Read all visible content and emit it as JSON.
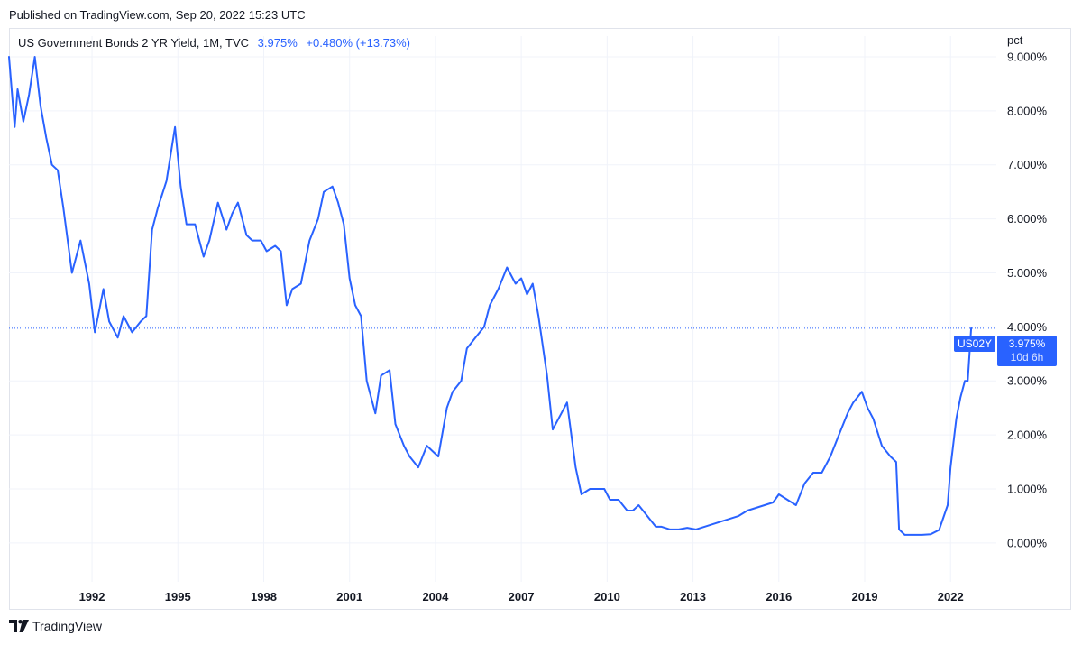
{
  "published": "Published on TradingView.com, Sep 20, 2022 15:23 UTC",
  "legend": {
    "name": "US Government Bonds 2 YR Yield, 1M, TVC",
    "last": "3.975%",
    "change": "+0.480% (+13.73%)"
  },
  "axis_unit": "pct",
  "price_tag": {
    "symbol": "US02Y",
    "value": "3.975%",
    "countdown": "10d 6h"
  },
  "footer": {
    "brand": "TradingView",
    "logo_icon": "tradingview-logo-icon"
  },
  "colors": {
    "line": "#2962ff",
    "grid": "#f0f3fa",
    "text": "#131722",
    "accent": "#2962ff"
  },
  "chart_data": {
    "type": "line",
    "title": "US Government Bonds 2 YR Yield, 1M, TVC",
    "ylabel": "pct",
    "ylim": [
      -0.72,
      9.3
    ],
    "xlim": [
      1989.1,
      2023.6
    ],
    "yticks": [
      0,
      1,
      2,
      3,
      4,
      5,
      6,
      7,
      8,
      9
    ],
    "ytick_labels": [
      "0.000%",
      "1.000%",
      "2.000%",
      "3.000%",
      "4.000%",
      "5.000%",
      "6.000%",
      "7.000%",
      "8.000%",
      "9.000%"
    ],
    "xticks": [
      1992,
      1995,
      1998,
      2001,
      2004,
      2007,
      2010,
      2013,
      2016,
      2019,
      2022
    ],
    "xtick_labels": [
      "1992",
      "1995",
      "1998",
      "2001",
      "2004",
      "2007",
      "2010",
      "2013",
      "2016",
      "2019",
      "2022"
    ],
    "current_value": 3.975,
    "series": [
      {
        "x": [
          1989.1,
          1989.3,
          1989.4,
          1989.6,
          1989.8,
          1990.0,
          1990.2,
          1990.4,
          1990.6,
          1990.8,
          1991.0,
          1991.3,
          1991.6,
          1991.9,
          1992.1,
          1992.4,
          1992.6,
          1992.9,
          1993.1,
          1993.4,
          1993.7,
          1993.9,
          1994.1,
          1994.3,
          1994.6,
          1994.9,
          1995.1,
          1995.3,
          1995.6,
          1995.9,
          1996.1,
          1996.4,
          1996.7,
          1996.9,
          1997.1,
          1997.4,
          1997.6,
          1997.9,
          1998.1,
          1998.4,
          1998.6,
          1998.8,
          1999.0,
          1999.3,
          1999.6,
          1999.9,
          2000.1,
          2000.4,
          2000.6,
          2000.8,
          2001.0,
          2001.2,
          2001.4,
          2001.6,
          2001.9,
          2002.1,
          2002.4,
          2002.6,
          2002.9,
          2003.1,
          2003.4,
          2003.7,
          2003.9,
          2004.1,
          2004.4,
          2004.6,
          2004.9,
          2005.1,
          2005.4,
          2005.7,
          2005.9,
          2006.2,
          2006.5,
          2006.8,
          2007.0,
          2007.2,
          2007.4,
          2007.6,
          2007.9,
          2008.1,
          2008.4,
          2008.6,
          2008.9,
          2009.1,
          2009.4,
          2009.7,
          2009.9,
          2010.1,
          2010.4,
          2010.7,
          2010.9,
          2011.1,
          2011.4,
          2011.7,
          2011.9,
          2012.2,
          2012.5,
          2012.8,
          2013.1,
          2013.4,
          2013.7,
          2014.0,
          2014.3,
          2014.6,
          2014.9,
          2015.2,
          2015.5,
          2015.8,
          2016.0,
          2016.3,
          2016.6,
          2016.9,
          2017.2,
          2017.5,
          2017.8,
          2018.1,
          2018.4,
          2018.6,
          2018.9,
          2019.1,
          2019.3,
          2019.6,
          2019.9,
          2020.1,
          2020.2,
          2020.4,
          2020.7,
          2021.0,
          2021.3,
          2021.6,
          2021.9,
          2022.0,
          2022.2,
          2022.35,
          2022.5,
          2022.6,
          2022.72
        ],
        "y": [
          9.0,
          7.7,
          8.4,
          7.8,
          8.3,
          9.0,
          8.1,
          7.5,
          7.0,
          6.9,
          6.2,
          5.0,
          5.6,
          4.8,
          3.9,
          4.7,
          4.1,
          3.8,
          4.2,
          3.9,
          4.1,
          4.2,
          5.8,
          6.2,
          6.7,
          7.7,
          6.6,
          5.9,
          5.9,
          5.3,
          5.6,
          6.3,
          5.8,
          6.1,
          6.3,
          5.7,
          5.6,
          5.6,
          5.4,
          5.5,
          5.4,
          4.4,
          4.7,
          4.8,
          5.6,
          6.0,
          6.5,
          6.6,
          6.3,
          5.9,
          4.9,
          4.4,
          4.2,
          3.0,
          2.4,
          3.1,
          3.2,
          2.2,
          1.8,
          1.6,
          1.4,
          1.8,
          1.7,
          1.6,
          2.5,
          2.8,
          3.0,
          3.6,
          3.8,
          4.0,
          4.4,
          4.7,
          5.1,
          4.8,
          4.9,
          4.6,
          4.8,
          4.2,
          3.1,
          2.1,
          2.4,
          2.6,
          1.4,
          0.9,
          1.0,
          1.0,
          1.0,
          0.8,
          0.8,
          0.6,
          0.6,
          0.7,
          0.5,
          0.3,
          0.3,
          0.25,
          0.25,
          0.28,
          0.25,
          0.3,
          0.35,
          0.4,
          0.45,
          0.5,
          0.6,
          0.65,
          0.7,
          0.75,
          0.9,
          0.8,
          0.7,
          1.1,
          1.3,
          1.3,
          1.6,
          2.0,
          2.4,
          2.6,
          2.8,
          2.5,
          2.3,
          1.8,
          1.6,
          1.5,
          0.25,
          0.15,
          0.15,
          0.15,
          0.16,
          0.24,
          0.7,
          1.4,
          2.3,
          2.7,
          3.0,
          3.0,
          3.975
        ]
      }
    ]
  }
}
